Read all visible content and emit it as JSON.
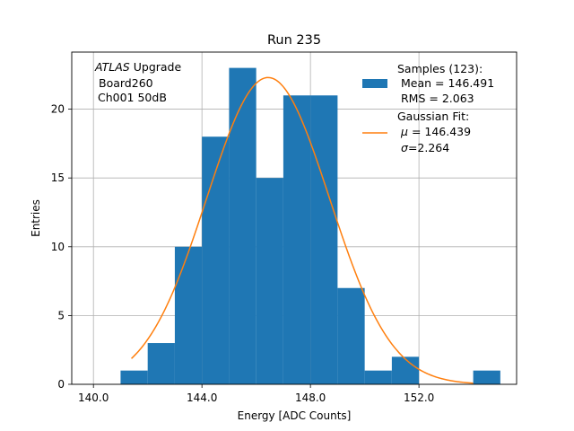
{
  "chart_data": {
    "type": "bar",
    "title": "Run 235",
    "xlabel": "Energy [ADC Counts]",
    "ylabel": "Entries",
    "xlim": [
      139.2,
      155.6
    ],
    "ylim": [
      0,
      24.15
    ],
    "x_ticks": [
      140.0,
      144.0,
      148.0,
      152.0
    ],
    "x_tick_labels": [
      "140.0",
      "144.0",
      "148.0",
      "152.0"
    ],
    "y_ticks": [
      0,
      5,
      10,
      15,
      20
    ],
    "y_tick_labels": [
      "0",
      "5",
      "10",
      "15",
      "20"
    ],
    "grid": true,
    "colors": {
      "bars": "#1f77b4",
      "fit": "#ff7f0e"
    },
    "annotation": {
      "atlas": "ATLAS",
      "upgrade": "Upgrade",
      "board": "Board260",
      "channel": "Ch001 50dB"
    },
    "legend": {
      "placement": "top-right",
      "samples_label": "Samples (123):",
      "mean_label": "Mean = 146.491",
      "rms_label": "RMS = 2.063",
      "fit_label": "Gaussian Fit:",
      "fit_mu_symbol": "μ",
      "fit_mu_value": "= 146.439",
      "fit_sigma_symbol": "σ",
      "fit_sigma_value": "=2.264"
    },
    "histogram": {
      "bin_edges": [
        141,
        142,
        143,
        144,
        145,
        146,
        147,
        148,
        149,
        150,
        151,
        152,
        153,
        154,
        155
      ],
      "counts": [
        1,
        3,
        10,
        18,
        23,
        15,
        21,
        21,
        7,
        1,
        2,
        0,
        0,
        1
      ]
    },
    "gaussian_fit": {
      "mu": 146.439,
      "sigma": 2.264,
      "amplitude": 22.3,
      "x_range": [
        141.4,
        154.0
      ]
    }
  }
}
